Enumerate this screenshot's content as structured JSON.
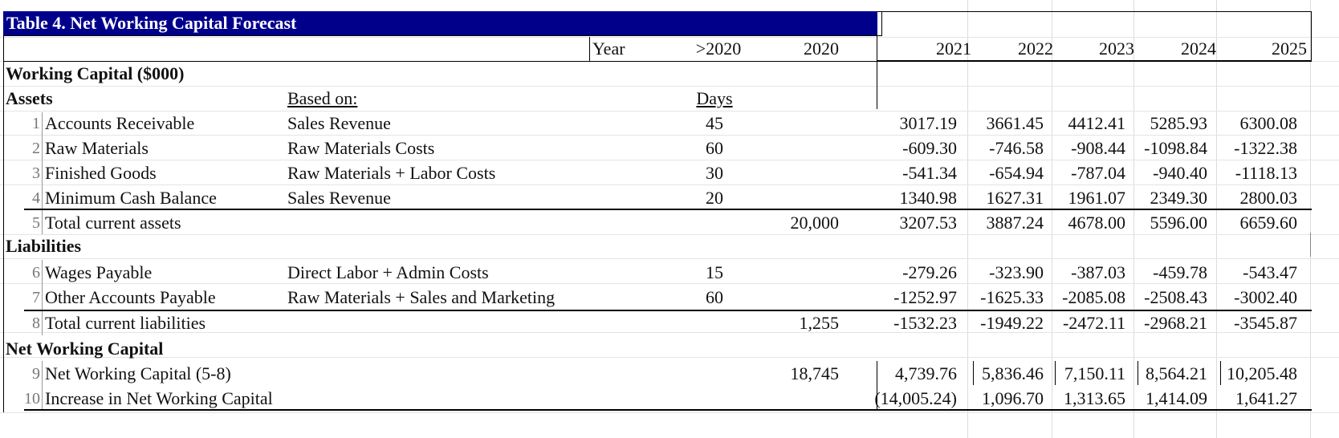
{
  "title": "Table 4. Net Working Capital Forecast",
  "header": {
    "year_label": "Year",
    "cols": [
      ">2020",
      "2020",
      "2021",
      "2022",
      "2023",
      "2024",
      "2025"
    ]
  },
  "section_wc": "Working Capital ($000)",
  "section_assets": "Assets",
  "based_on_label": "Based on:",
  "days_label": "Days",
  "section_liab": "Liabilities",
  "section_nwc": "Net Working Capital",
  "rows": [
    {
      "num": "1",
      "label": "Accounts Receivable",
      "basis": "Sales Revenue",
      "days": "45",
      "y2020": "",
      "vals": [
        "3017.19",
        "3661.45",
        "4412.41",
        "5285.93",
        "6300.08"
      ]
    },
    {
      "num": "2",
      "label": "Raw Materials",
      "basis": "Raw Materials Costs",
      "days": "60",
      "y2020": "",
      "vals": [
        "-609.30",
        "-746.58",
        "-908.44",
        "-1098.84",
        "-1322.38"
      ]
    },
    {
      "num": "3",
      "label": "Finished Goods",
      "basis": "Raw Materials + Labor Costs",
      "days": "30",
      "y2020": "",
      "vals": [
        "-541.34",
        "-654.94",
        "-787.04",
        "-940.40",
        "-1118.13"
      ]
    },
    {
      "num": "4",
      "label": "Minimum Cash Balance",
      "basis": "Sales Revenue",
      "days": "20",
      "y2020": "",
      "vals": [
        "1340.98",
        "1627.31",
        "1961.07",
        "2349.30",
        "2800.03"
      ]
    },
    {
      "num": "5",
      "label": "Total current assets",
      "basis": "",
      "days": "",
      "y2020": "20,000",
      "vals": [
        "3207.53",
        "3887.24",
        "4678.00",
        "5596.00",
        "6659.60"
      ]
    },
    {
      "num": "6",
      "label": "Wages Payable",
      "basis": "Direct Labor + Admin Costs",
      "days": "15",
      "y2020": "",
      "vals": [
        "-279.26",
        "-323.90",
        "-387.03",
        "-459.78",
        "-543.47"
      ]
    },
    {
      "num": "7",
      "label": "Other Accounts Payable",
      "basis": "Raw Materials + Sales and Marketing",
      "days": "60",
      "y2020": "",
      "vals": [
        "-1252.97",
        "-1625.33",
        "-2085.08",
        "-2508.43",
        "-3002.40"
      ]
    },
    {
      "num": "8",
      "label": "Total current liabilities",
      "basis": "",
      "days": "",
      "y2020": "1,255",
      "vals": [
        "-1532.23",
        "-1949.22",
        "-2472.11",
        "-2968.21",
        "-3545.87"
      ]
    },
    {
      "num": "9",
      "label": "Net Working Capital (5-8)",
      "basis": "",
      "days": "",
      "y2020": "18,745",
      "vals": [
        "4,739.76",
        "5,836.46",
        "7,150.11",
        "8,564.21",
        "10,205.48"
      ]
    },
    {
      "num": "10",
      "label": "Increase in Net Working Capital",
      "basis": "",
      "days": "",
      "y2020": "",
      "vals": [
        "(14,005.24)",
        "1,096.70",
        "1,313.65",
        "1,414.09",
        "1,641.27"
      ]
    }
  ]
}
